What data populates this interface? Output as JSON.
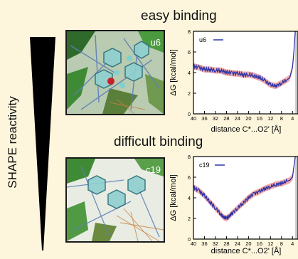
{
  "side_label": "SHAPE reactivity",
  "panels": [
    {
      "heading": "easy binding",
      "molecule_label": "u6",
      "legend": "u6"
    },
    {
      "heading": "difficult binding",
      "molecule_label": "c19",
      "legend": "c19"
    }
  ],
  "colors": {
    "background": "#fdf6dc",
    "curve": "#2b35a8",
    "error_band": "#ee8b8b",
    "shade": "#c8c8c8"
  },
  "chart_data": [
    {
      "type": "line",
      "title": "easy binding",
      "xlabel": "distance  C*...O2' [Å]",
      "ylabel": "ΔG  [kcal/mol]",
      "xlim": [
        40,
        2
      ],
      "ylim": [
        0,
        8
      ],
      "xticks": [
        40,
        36,
        32,
        28,
        24,
        20,
        16,
        12,
        8,
        4
      ],
      "yticks": [
        0,
        2,
        4,
        6,
        8
      ],
      "shaded_region": [
        3,
        2
      ],
      "series": [
        {
          "name": "u6",
          "x": [
            40,
            38,
            36,
            34,
            32,
            30,
            28,
            26,
            24,
            22,
            20,
            18,
            16,
            14,
            12,
            10,
            8,
            6,
            5,
            4,
            3.5,
            3
          ],
          "y": [
            4.6,
            4.5,
            4.3,
            4.3,
            4.2,
            4.2,
            4.0,
            3.95,
            3.9,
            3.8,
            3.8,
            3.7,
            3.5,
            3.2,
            2.8,
            2.7,
            3.0,
            3.3,
            3.5,
            4.5,
            6.0,
            8.0
          ]
        }
      ]
    },
    {
      "type": "line",
      "title": "difficult binding",
      "xlabel": "distance  C*...O2' [Å]",
      "ylabel": "ΔG  [kcal/mol]",
      "xlim": [
        40,
        2
      ],
      "ylim": [
        0,
        8
      ],
      "xticks": [
        40,
        36,
        32,
        28,
        24,
        20,
        16,
        12,
        8,
        4
      ],
      "yticks": [
        0,
        2,
        4,
        6,
        8
      ],
      "shaded_region": [
        3,
        2
      ],
      "series": [
        {
          "name": "c19",
          "x": [
            40,
            38,
            36,
            34,
            32,
            30,
            29,
            28,
            27,
            26,
            24,
            22,
            20,
            18,
            16,
            14,
            12,
            10,
            8,
            6,
            5,
            4,
            3.5,
            3
          ],
          "y": [
            5.0,
            4.7,
            4.2,
            3.6,
            3.0,
            2.4,
            2.1,
            2.0,
            2.2,
            2.5,
            3.0,
            3.5,
            4.0,
            4.4,
            4.6,
            4.9,
            5.1,
            5.3,
            5.4,
            5.6,
            5.7,
            6.0,
            7.0,
            8.0
          ]
        }
      ]
    }
  ]
}
